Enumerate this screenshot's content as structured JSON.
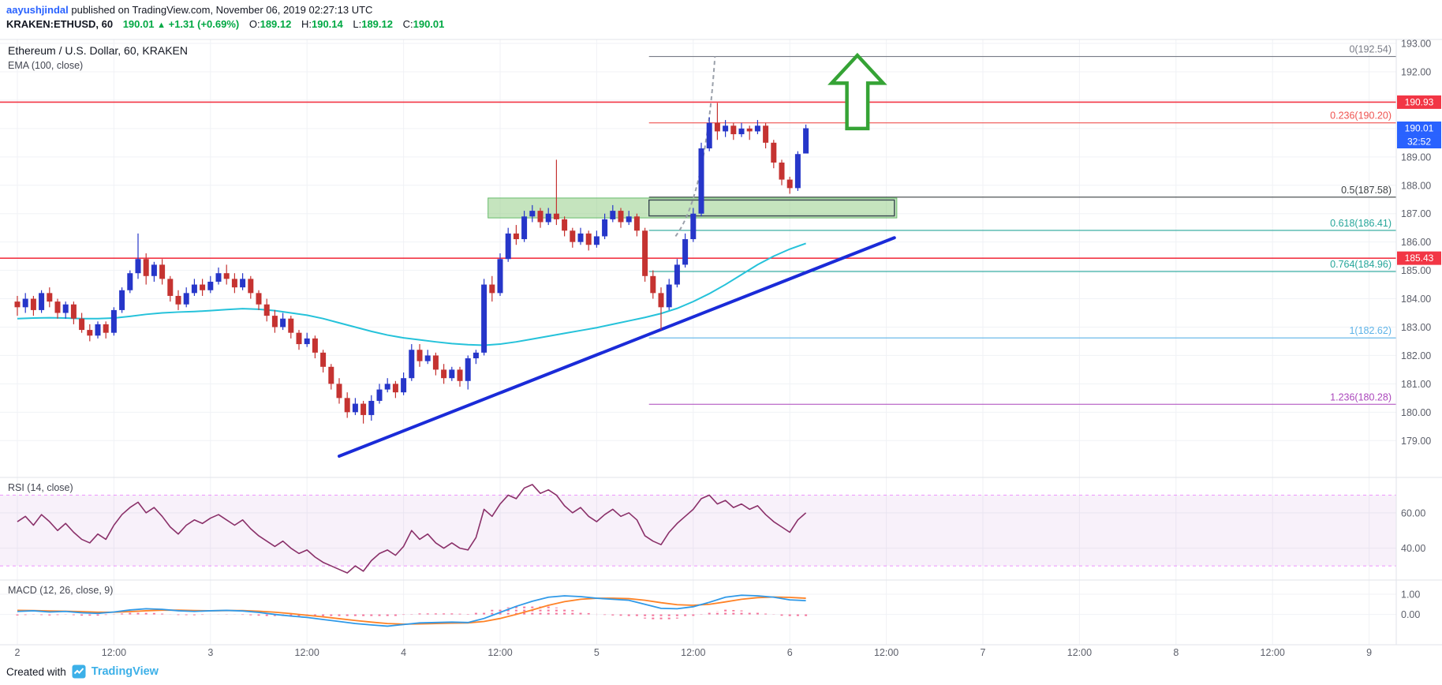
{
  "header": {
    "author": "aayushjindal",
    "published_suffix": " published on TradingView.com, November 06, 2019 02:27:13 UTC",
    "symbol_text": "KRAKEN:ETHUSD, 60",
    "last_price": "190.01",
    "up_arrow": "▲",
    "change_text": "+1.31 (+0.69%)",
    "ohlc": [
      {
        "k": "O:",
        "v": "189.12"
      },
      {
        "k": "H:",
        "v": "190.14"
      },
      {
        "k": "L:",
        "v": "189.12"
      },
      {
        "k": "C:",
        "v": "190.01"
      }
    ]
  },
  "legend": {
    "main_title": "Ethereum / U.S. Dollar, 60, KRAKEN",
    "ema": "EMA (100, close)",
    "rsi": "RSI (14, close)",
    "macd": "MACD (12, 26, close, 9)"
  },
  "footer": {
    "created_with": "Created with",
    "brand": "TradingView"
  },
  "chart_data": {
    "type": "candlestick",
    "symbol": "KRAKEN:ETHUSD",
    "interval": "60",
    "title": "Ethereum / U.S. Dollar, 60, KRAKEN",
    "time_axis": {
      "x0": 22,
      "hour_width": 10.2,
      "grid_step_hours": 12,
      "labels": [
        {
          "hour": 0,
          "text": "2"
        },
        {
          "hour": 12,
          "text": "12:00"
        },
        {
          "hour": 24,
          "text": "3"
        },
        {
          "hour": 36,
          "text": "12:00"
        },
        {
          "hour": 48,
          "text": "4"
        },
        {
          "hour": 60,
          "text": "12:00"
        },
        {
          "hour": 72,
          "text": "5"
        },
        {
          "hour": 84,
          "text": "12:00"
        },
        {
          "hour": 96,
          "text": "6"
        },
        {
          "hour": 108,
          "text": "12:00"
        },
        {
          "hour": 120,
          "text": "7"
        },
        {
          "hour": 132,
          "text": "12:00"
        },
        {
          "hour": 144,
          "text": "8"
        },
        {
          "hour": 156,
          "text": "12:00"
        },
        {
          "hour": 168,
          "text": "9"
        }
      ]
    },
    "price_axis": {
      "ylim": [
        177.7,
        193.14
      ],
      "ticks": [
        179,
        180,
        181,
        182,
        183,
        184,
        185,
        186,
        187,
        188,
        189,
        190,
        191,
        192,
        193
      ]
    },
    "candle_colors": {
      "up": "#2636c9",
      "down": "#c53331"
    },
    "candles": [
      [
        183.9,
        184.1,
        183.4,
        183.7
      ],
      [
        183.7,
        184.2,
        183.5,
        184.0
      ],
      [
        184.0,
        184.1,
        183.4,
        183.6
      ],
      [
        183.6,
        184.3,
        183.5,
        184.2
      ],
      [
        184.2,
        184.4,
        183.7,
        183.9
      ],
      [
        183.9,
        184.0,
        183.3,
        183.5
      ],
      [
        183.5,
        183.9,
        183.3,
        183.8
      ],
      [
        183.8,
        183.9,
        183.1,
        183.3
      ],
      [
        183.3,
        183.5,
        182.8,
        182.9
      ],
      [
        182.9,
        183.1,
        182.5,
        182.7
      ],
      [
        182.7,
        183.2,
        182.6,
        183.1
      ],
      [
        183.1,
        183.2,
        182.6,
        182.8
      ],
      [
        182.8,
        183.7,
        182.7,
        183.6
      ],
      [
        183.6,
        184.4,
        183.5,
        184.3
      ],
      [
        184.3,
        185.0,
        184.2,
        184.9
      ],
      [
        184.9,
        186.3,
        184.7,
        185.4
      ],
      [
        185.4,
        185.6,
        184.5,
        184.8
      ],
      [
        184.8,
        185.3,
        184.6,
        185.2
      ],
      [
        185.2,
        185.4,
        184.5,
        184.7
      ],
      [
        184.7,
        184.8,
        183.9,
        184.1
      ],
      [
        184.1,
        184.3,
        183.6,
        183.8
      ],
      [
        183.8,
        184.4,
        183.7,
        184.2
      ],
      [
        184.2,
        184.7,
        184.1,
        184.5
      ],
      [
        184.5,
        184.7,
        184.1,
        184.3
      ],
      [
        184.3,
        184.8,
        184.2,
        184.6
      ],
      [
        184.6,
        185.1,
        184.5,
        184.9
      ],
      [
        184.9,
        185.2,
        184.5,
        184.7
      ],
      [
        184.7,
        184.9,
        184.2,
        184.4
      ],
      [
        184.4,
        184.9,
        184.3,
        184.7
      ],
      [
        184.7,
        184.8,
        184.0,
        184.2
      ],
      [
        184.2,
        184.3,
        183.6,
        183.8
      ],
      [
        183.8,
        184.0,
        183.2,
        183.4
      ],
      [
        183.4,
        183.6,
        182.8,
        183.0
      ],
      [
        183.0,
        183.5,
        182.9,
        183.3
      ],
      [
        183.3,
        183.4,
        182.6,
        182.8
      ],
      [
        182.8,
        182.9,
        182.2,
        182.4
      ],
      [
        182.4,
        182.8,
        182.3,
        182.6
      ],
      [
        182.6,
        182.7,
        181.9,
        182.1
      ],
      [
        182.1,
        182.2,
        181.4,
        181.6
      ],
      [
        181.6,
        181.7,
        180.8,
        181.0
      ],
      [
        181.0,
        181.2,
        180.3,
        180.5
      ],
      [
        180.5,
        180.7,
        179.8,
        180.0
      ],
      [
        180.0,
        180.5,
        179.9,
        180.3
      ],
      [
        180.3,
        180.4,
        179.6,
        179.9
      ],
      [
        179.9,
        180.6,
        179.7,
        180.4
      ],
      [
        180.4,
        181.0,
        180.3,
        180.8
      ],
      [
        180.8,
        181.2,
        180.7,
        181.0
      ],
      [
        181.0,
        181.1,
        180.5,
        180.7
      ],
      [
        180.7,
        181.4,
        180.6,
        181.2
      ],
      [
        181.2,
        182.4,
        181.1,
        182.2
      ],
      [
        182.2,
        182.4,
        181.6,
        181.8
      ],
      [
        181.8,
        182.2,
        181.7,
        182.0
      ],
      [
        182.0,
        182.1,
        181.3,
        181.5
      ],
      [
        181.5,
        181.7,
        181.0,
        181.2
      ],
      [
        181.2,
        181.6,
        181.1,
        181.5
      ],
      [
        181.5,
        181.6,
        180.9,
        181.1
      ],
      [
        181.1,
        182.0,
        180.8,
        181.9
      ],
      [
        181.9,
        182.2,
        181.7,
        182.1
      ],
      [
        182.1,
        184.7,
        182.0,
        184.5
      ],
      [
        184.5,
        184.8,
        183.9,
        184.2
      ],
      [
        184.2,
        185.6,
        184.1,
        185.4
      ],
      [
        185.4,
        186.5,
        185.3,
        186.3
      ],
      [
        186.3,
        186.6,
        185.9,
        186.1
      ],
      [
        186.1,
        187.1,
        186.0,
        186.9
      ],
      [
        186.9,
        187.3,
        186.7,
        187.1
      ],
      [
        187.1,
        187.2,
        186.5,
        186.7
      ],
      [
        186.7,
        187.2,
        186.6,
        187.0
      ],
      [
        187.0,
        188.9,
        186.6,
        186.8
      ],
      [
        186.8,
        186.9,
        186.2,
        186.4
      ],
      [
        186.4,
        186.5,
        185.8,
        186.0
      ],
      [
        186.0,
        186.5,
        185.9,
        186.3
      ],
      [
        186.3,
        186.4,
        185.7,
        185.9
      ],
      [
        185.9,
        186.4,
        185.8,
        186.2
      ],
      [
        186.2,
        187.0,
        186.1,
        186.8
      ],
      [
        186.8,
        187.3,
        186.7,
        187.1
      ],
      [
        187.1,
        187.2,
        186.5,
        186.7
      ],
      [
        186.7,
        187.1,
        186.6,
        186.9
      ],
      [
        186.9,
        187.0,
        186.2,
        186.4
      ],
      [
        186.4,
        186.5,
        184.6,
        184.8
      ],
      [
        184.8,
        185.0,
        184.0,
        184.2
      ],
      [
        184.2,
        184.4,
        182.9,
        183.7
      ],
      [
        183.7,
        184.7,
        183.6,
        184.5
      ],
      [
        184.5,
        185.4,
        184.4,
        185.2
      ],
      [
        185.2,
        186.3,
        185.1,
        186.1
      ],
      [
        186.1,
        187.2,
        186.0,
        187.0
      ],
      [
        187.0,
        189.5,
        186.9,
        189.3
      ],
      [
        189.3,
        190.4,
        189.2,
        190.2
      ],
      [
        190.2,
        190.9,
        189.6,
        189.9
      ],
      [
        189.9,
        190.3,
        189.7,
        190.1
      ],
      [
        190.1,
        190.2,
        189.6,
        189.8
      ],
      [
        189.8,
        190.2,
        189.7,
        190.0
      ],
      [
        190.0,
        190.1,
        189.6,
        189.9
      ],
      [
        189.9,
        190.3,
        189.8,
        190.1
      ],
      [
        190.1,
        190.2,
        189.3,
        189.5
      ],
      [
        189.5,
        189.6,
        188.6,
        188.8
      ],
      [
        188.8,
        188.9,
        188.0,
        188.2
      ],
      [
        188.2,
        188.3,
        187.7,
        187.9
      ],
      [
        187.9,
        189.2,
        187.8,
        189.1
      ],
      [
        189.12,
        190.14,
        189.12,
        190.01
      ]
    ],
    "ema": {
      "label": "EMA (100, close)",
      "color": "#25c2da",
      "step": 2,
      "values": [
        183.3,
        183.32,
        183.33,
        183.32,
        183.3,
        183.3,
        183.32,
        183.38,
        183.45,
        183.5,
        183.53,
        183.55,
        183.58,
        183.62,
        183.65,
        183.63,
        183.58,
        183.5,
        183.42,
        183.3,
        183.15,
        183.0,
        182.85,
        182.72,
        182.62,
        182.55,
        182.48,
        182.42,
        182.38,
        182.36,
        182.4,
        182.48,
        182.58,
        182.68,
        182.78,
        182.88,
        182.98,
        183.1,
        183.22,
        183.34,
        183.48,
        183.66,
        183.9,
        184.18,
        184.5,
        184.85,
        185.2,
        185.5,
        185.75,
        185.95
      ]
    },
    "trend_line": {
      "from_hour": 40,
      "from_price": 178.45,
      "to_hour": 109,
      "to_price": 186.15,
      "color": "#1a2bd8",
      "width": 4
    },
    "h_lines": [
      {
        "price": 190.93,
        "color": "#f23645"
      },
      {
        "price": 185.43,
        "color": "#f23645"
      }
    ],
    "fib_retracement": {
      "start_hour": 78.5,
      "levels": [
        {
          "label": "0(192.54)",
          "price": 192.54,
          "color": "#787b86"
        },
        {
          "label": "0.236(190.20)",
          "price": 190.2,
          "color": "#ef5350"
        },
        {
          "label": "0.5(187.58)",
          "price": 187.58,
          "color": "#3c4043"
        },
        {
          "label": "0.618(186.41)",
          "price": 186.41,
          "color": "#26a69a"
        },
        {
          "label": "0.764(184.96)",
          "price": 184.96,
          "color": "#26a69a"
        },
        {
          "label": "1(182.62)",
          "price": 182.62,
          "color": "#5db3e8"
        },
        {
          "label": "1.236(180.28)",
          "price": 180.28,
          "color": "#ab47bc"
        }
      ]
    },
    "zone": {
      "from_hour": 58.5,
      "to_hour": 109.3,
      "top_price": 187.55,
      "bottom_price": 186.85,
      "fill": "rgba(139,202,125,0.5)",
      "stroke": "#66bb6a",
      "inner": {
        "from_hour": 78.5,
        "to_hour": 109.0,
        "top_price": 187.48,
        "bottom_price": 186.92,
        "stroke": "#37474f"
      }
    },
    "arrow_up": {
      "hour": 104.4,
      "tip_price": 192.58,
      "head_base_price": 191.6,
      "base_price": 190.0,
      "head_half_hours": 3.2,
      "shaft_half_hours": 1.3,
      "color": "#35a335"
    },
    "projection_curve": {
      "points_hours_price": [
        [
          81.8,
          186.2
        ],
        [
          85.5,
          187.6
        ],
        [
          86.7,
          192.55
        ]
      ],
      "color": "#9aa0aa"
    },
    "badges": [
      {
        "text": "190.93",
        "bg": "#f23645",
        "price": 190.93,
        "dy": 0
      },
      {
        "text": "190.01",
        "bg": "#2962ff",
        "price": 190.01,
        "dy": 0
      },
      {
        "text": "32:52",
        "bg": "#2962ff",
        "price": 190.01,
        "dy": 17
      },
      {
        "text": "185.43",
        "bg": "#f23645",
        "price": 185.43,
        "dy": 0
      }
    ],
    "rsi": {
      "label": "RSI (14, close)",
      "color": "#8a3069",
      "ylim": [
        22,
        80
      ],
      "band": [
        30,
        70
      ],
      "band_fill": "rgba(171,71,188,0.08)",
      "band_line_color": "#e040fb",
      "axis_labels": [
        60,
        40
      ],
      "values": [
        55,
        58,
        53,
        59,
        55,
        50,
        54,
        49,
        45,
        43,
        48,
        45,
        53,
        59,
        63,
        66,
        60,
        63,
        58,
        52,
        48,
        53,
        56,
        54,
        57,
        59,
        56,
        53,
        56,
        51,
        47,
        44,
        41,
        44,
        40,
        37,
        39,
        35,
        32,
        30,
        28,
        26,
        30,
        27,
        33,
        37,
        39,
        36,
        41,
        50,
        45,
        48,
        43,
        40,
        43,
        40,
        39,
        46,
        62,
        58,
        65,
        70,
        68,
        74,
        76,
        71,
        73,
        70,
        64,
        60,
        63,
        58,
        55,
        59,
        62,
        58,
        60,
        56,
        47,
        44,
        42,
        49,
        54,
        58,
        62,
        68,
        70,
        65,
        67,
        63,
        65,
        62,
        64,
        59,
        55,
        52,
        49,
        56,
        60
      ]
    },
    "macd": {
      "label": "MACD (12, 26, close, 9)",
      "ylim": [
        -1.5,
        1.7
      ],
      "axis_labels": [
        1,
        0
      ],
      "macd_color": "#2f99e8",
      "signal_color": "#ff8226",
      "hist_color": "#f25c8a",
      "step": 2,
      "macd": [
        0.15,
        0.18,
        0.12,
        0.15,
        0.08,
        0.05,
        0.12,
        0.22,
        0.28,
        0.25,
        0.18,
        0.15,
        0.18,
        0.2,
        0.17,
        0.1,
        0.0,
        -0.08,
        -0.15,
        -0.25,
        -0.35,
        -0.45,
        -0.52,
        -0.58,
        -0.5,
        -0.42,
        -0.4,
        -0.38,
        -0.4,
        -0.2,
        0.1,
        0.4,
        0.65,
        0.85,
        0.92,
        0.88,
        0.8,
        0.75,
        0.7,
        0.5,
        0.3,
        0.28,
        0.38,
        0.6,
        0.85,
        0.95,
        0.92,
        0.85,
        0.72,
        0.68
      ],
      "signal": [
        0.2,
        0.19,
        0.17,
        0.16,
        0.14,
        0.11,
        0.11,
        0.14,
        0.18,
        0.21,
        0.21,
        0.19,
        0.18,
        0.19,
        0.19,
        0.16,
        0.11,
        0.04,
        -0.04,
        -0.12,
        -0.21,
        -0.3,
        -0.38,
        -0.45,
        -0.48,
        -0.47,
        -0.45,
        -0.43,
        -0.42,
        -0.35,
        -0.2,
        0.0,
        0.22,
        0.45,
        0.63,
        0.75,
        0.8,
        0.8,
        0.78,
        0.7,
        0.58,
        0.48,
        0.45,
        0.5,
        0.62,
        0.75,
        0.83,
        0.86,
        0.84,
        0.8
      ]
    }
  }
}
